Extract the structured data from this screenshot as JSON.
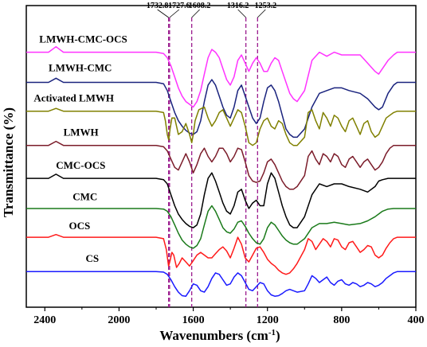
{
  "chart_data": {
    "type": "line",
    "xlabel": "Wavenumbers (cm",
    "xlabel_sup": "-1",
    "xlabel_end": ")",
    "ylabel": "Transmittance (%)",
    "xlim": [
      2500,
      400
    ],
    "x_reversed": true,
    "x_ticks": [
      2400,
      2000,
      1600,
      1200,
      800,
      400
    ],
    "x_tick_labels": [
      "2400",
      "2000",
      "1600",
      "1200",
      "800",
      "400"
    ],
    "y_ticks_shown": false,
    "grid": false,
    "reference_lines": [
      {
        "x": 1732.8,
        "label": "1732.8"
      },
      {
        "x": 1727.6,
        "label": "1727.6"
      },
      {
        "x": 1608.2,
        "label": "1608.2"
      },
      {
        "x": 1316.2,
        "label": "1316.2"
      },
      {
        "x": 1253.2,
        "label": "1253.2"
      }
    ],
    "reference_line_color": "#9b1b8e",
    "series": [
      {
        "name": "LMWH-CMC-OCS",
        "color": "#ff33ff",
        "baseline": 9.0,
        "x": [
          2500,
          2380,
          2340,
          2300,
          2200,
          2000,
          1800,
          1760,
          1740,
          1720,
          1700,
          1680,
          1660,
          1640,
          1620,
          1600,
          1580,
          1560,
          1540,
          1520,
          1500,
          1480,
          1460,
          1440,
          1420,
          1400,
          1380,
          1360,
          1340,
          1320,
          1300,
          1280,
          1260,
          1240,
          1220,
          1200,
          1180,
          1160,
          1140,
          1120,
          1100,
          1080,
          1060,
          1040,
          1000,
          960,
          920,
          880,
          840,
          800,
          760,
          700,
          660,
          620,
          600,
          580,
          550,
          520,
          500,
          480,
          450,
          420,
          400
        ],
        "y": [
          9.0,
          9.0,
          9.2,
          9.0,
          9.0,
          9.0,
          9.0,
          8.95,
          8.8,
          8.5,
          8.1,
          7.7,
          7.4,
          7.2,
          7.1,
          7.0,
          7.2,
          7.6,
          8.2,
          8.8,
          9.1,
          9.0,
          8.8,
          8.4,
          8.0,
          7.8,
          8.1,
          8.7,
          8.9,
          8.6,
          8.3,
          8.6,
          8.8,
          8.6,
          8.3,
          8.3,
          8.6,
          8.8,
          8.7,
          8.3,
          7.9,
          7.5,
          7.3,
          7.2,
          7.6,
          8.7,
          9.0,
          8.85,
          9.0,
          8.9,
          8.9,
          8.9,
          8.6,
          8.3,
          8.2,
          8.4,
          8.7,
          8.9,
          9.0,
          9.0,
          9.0,
          9.0,
          9.0
        ]
      },
      {
        "name": "LMWH-CMC",
        "color": "#1a237e",
        "baseline": 7.9,
        "x": [
          2500,
          2380,
          2340,
          2300,
          2200,
          2000,
          1800,
          1760,
          1740,
          1720,
          1700,
          1680,
          1660,
          1640,
          1620,
          1600,
          1580,
          1560,
          1540,
          1520,
          1500,
          1480,
          1460,
          1440,
          1420,
          1400,
          1380,
          1360,
          1340,
          1320,
          1300,
          1280,
          1260,
          1240,
          1220,
          1200,
          1180,
          1160,
          1140,
          1120,
          1100,
          1080,
          1060,
          1040,
          1000,
          960,
          920,
          880,
          840,
          800,
          760,
          700,
          660,
          620,
          600,
          580,
          550,
          520,
          500,
          480,
          450,
          420,
          400
        ],
        "y": [
          7.9,
          7.9,
          8.05,
          7.9,
          7.9,
          7.9,
          7.9,
          7.85,
          7.6,
          7.2,
          6.8,
          6.5,
          6.3,
          6.15,
          6.05,
          6.0,
          6.1,
          6.5,
          7.2,
          7.8,
          8.0,
          7.8,
          7.4,
          7.0,
          6.7,
          6.6,
          7.0,
          7.6,
          7.8,
          7.4,
          7.0,
          6.6,
          6.4,
          6.6,
          7.2,
          7.7,
          7.8,
          7.6,
          7.2,
          6.7,
          6.2,
          6.0,
          5.9,
          5.9,
          6.2,
          7.0,
          7.5,
          7.6,
          7.7,
          7.7,
          7.6,
          7.5,
          7.3,
          7.0,
          6.9,
          7.0,
          7.5,
          7.8,
          7.9,
          7.9,
          7.9,
          7.9,
          7.9
        ]
      },
      {
        "name": "Activated LMWH",
        "color": "#808000",
        "baseline": 6.85,
        "x": [
          2500,
          2380,
          2340,
          2300,
          2200,
          2000,
          1800,
          1760,
          1750,
          1740,
          1732,
          1725,
          1715,
          1700,
          1690,
          1680,
          1660,
          1640,
          1620,
          1608,
          1600,
          1590,
          1570,
          1540,
          1520,
          1500,
          1480,
          1460,
          1440,
          1420,
          1400,
          1380,
          1360,
          1340,
          1320,
          1300,
          1280,
          1260,
          1240,
          1220,
          1200,
          1180,
          1160,
          1140,
          1120,
          1100,
          1080,
          1060,
          1040,
          1000,
          980,
          960,
          940,
          920,
          900,
          880,
          860,
          840,
          820,
          800,
          780,
          760,
          740,
          720,
          700,
          680,
          660,
          640,
          620,
          600,
          580,
          560,
          540,
          520,
          500,
          480,
          450,
          420,
          400
        ],
        "y": [
          6.85,
          6.85,
          6.95,
          6.85,
          6.85,
          6.85,
          6.85,
          6.8,
          6.5,
          6.0,
          5.8,
          6.2,
          6.6,
          6.6,
          6.3,
          6.0,
          6.1,
          6.4,
          6.0,
          5.7,
          6.0,
          6.5,
          6.9,
          7.0,
          6.6,
          6.3,
          6.5,
          6.8,
          6.9,
          6.6,
          6.3,
          6.6,
          6.9,
          6.8,
          6.3,
          5.7,
          5.6,
          5.7,
          6.2,
          6.5,
          6.6,
          6.3,
          6.2,
          6.5,
          6.4,
          6.0,
          5.7,
          5.6,
          5.6,
          5.9,
          6.8,
          6.9,
          6.5,
          6.2,
          6.8,
          6.6,
          6.3,
          6.7,
          6.6,
          6.3,
          6.1,
          6.5,
          6.6,
          6.3,
          6.0,
          6.4,
          6.5,
          6.1,
          5.9,
          6.0,
          6.3,
          6.6,
          6.7,
          6.8,
          6.85,
          6.85,
          6.85,
          6.85,
          6.85
        ]
      },
      {
        "name": "LMWH",
        "color": "#7b1c2a",
        "baseline": 5.6,
        "x": [
          2500,
          2380,
          2340,
          2300,
          2200,
          2000,
          1800,
          1760,
          1740,
          1720,
          1700,
          1680,
          1660,
          1640,
          1620,
          1600,
          1580,
          1560,
          1540,
          1520,
          1500,
          1480,
          1460,
          1440,
          1420,
          1400,
          1380,
          1360,
          1340,
          1320,
          1300,
          1280,
          1260,
          1240,
          1220,
          1200,
          1180,
          1160,
          1140,
          1120,
          1100,
          1080,
          1060,
          1040,
          1000,
          980,
          960,
          940,
          920,
          900,
          880,
          860,
          840,
          820,
          800,
          780,
          760,
          740,
          720,
          700,
          680,
          660,
          640,
          620,
          600,
          580,
          560,
          540,
          520,
          500,
          480,
          450,
          420,
          400
        ],
        "y": [
          5.6,
          5.6,
          5.75,
          5.6,
          5.6,
          5.6,
          5.6,
          5.55,
          5.4,
          5.1,
          4.8,
          4.7,
          5.0,
          5.3,
          5.0,
          4.6,
          4.9,
          5.3,
          5.5,
          5.2,
          5.0,
          5.2,
          5.5,
          5.5,
          5.3,
          5.0,
          5.2,
          5.5,
          5.45,
          5.0,
          4.5,
          4.3,
          4.25,
          4.3,
          4.6,
          5.0,
          5.1,
          4.9,
          4.6,
          4.3,
          4.1,
          4.0,
          4.0,
          4.1,
          4.5,
          5.2,
          5.4,
          5.1,
          4.9,
          5.3,
          5.2,
          5.0,
          5.3,
          5.2,
          4.9,
          4.8,
          5.1,
          5.2,
          5.0,
          4.8,
          5.0,
          5.1,
          4.9,
          4.7,
          4.8,
          5.0,
          5.3,
          5.5,
          5.6,
          5.6,
          5.6,
          5.6,
          5.6,
          5.6
        ]
      },
      {
        "name": "CMC-OCS",
        "color": "#000000",
        "baseline": 4.4,
        "x": [
          2500,
          2380,
          2340,
          2300,
          2200,
          2000,
          1800,
          1760,
          1740,
          1720,
          1700,
          1680,
          1660,
          1640,
          1620,
          1600,
          1580,
          1560,
          1540,
          1520,
          1500,
          1480,
          1460,
          1440,
          1420,
          1400,
          1380,
          1360,
          1340,
          1320,
          1300,
          1280,
          1260,
          1240,
          1220,
          1200,
          1180,
          1160,
          1140,
          1120,
          1100,
          1080,
          1060,
          1040,
          1000,
          960,
          920,
          880,
          840,
          800,
          760,
          700,
          660,
          620,
          600,
          580,
          550,
          520,
          500,
          480,
          450,
          420,
          400
        ],
        "y": [
          4.4,
          4.4,
          4.55,
          4.4,
          4.4,
          4.4,
          4.4,
          4.35,
          4.2,
          3.8,
          3.4,
          3.1,
          2.9,
          2.75,
          2.65,
          2.6,
          2.7,
          3.1,
          3.8,
          4.4,
          4.6,
          4.3,
          3.9,
          3.5,
          3.2,
          3.1,
          3.4,
          3.9,
          4.0,
          3.6,
          3.3,
          3.5,
          3.6,
          3.4,
          3.4,
          4.2,
          4.6,
          4.4,
          3.9,
          3.4,
          3.0,
          2.7,
          2.6,
          2.6,
          3.0,
          3.8,
          4.2,
          4.1,
          4.2,
          4.2,
          4.1,
          4.0,
          3.9,
          4.1,
          4.3,
          4.35,
          4.4,
          4.4,
          4.4,
          4.4,
          4.4,
          4.4,
          4.4
        ]
      },
      {
        "name": "CMC",
        "color": "#1a7a1a",
        "baseline": 3.3,
        "x": [
          2500,
          2380,
          2340,
          2300,
          2200,
          2000,
          1800,
          1760,
          1740,
          1720,
          1700,
          1680,
          1660,
          1640,
          1620,
          1600,
          1580,
          1560,
          1540,
          1520,
          1500,
          1480,
          1460,
          1440,
          1420,
          1400,
          1380,
          1360,
          1340,
          1320,
          1300,
          1280,
          1260,
          1240,
          1220,
          1200,
          1180,
          1160,
          1140,
          1120,
          1100,
          1080,
          1060,
          1040,
          1000,
          960,
          920,
          880,
          840,
          800,
          760,
          700,
          660,
          620,
          600,
          580,
          550,
          520,
          500,
          480,
          450,
          420,
          400
        ],
        "y": [
          3.3,
          3.3,
          3.3,
          3.3,
          3.3,
          3.3,
          3.3,
          3.28,
          3.2,
          3.0,
          2.7,
          2.4,
          2.15,
          2.0,
          1.9,
          1.85,
          1.95,
          2.2,
          2.7,
          3.2,
          3.4,
          3.2,
          2.9,
          2.6,
          2.45,
          2.4,
          2.55,
          2.8,
          2.85,
          2.65,
          2.4,
          2.2,
          2.05,
          2.0,
          2.2,
          2.6,
          2.8,
          2.7,
          2.5,
          2.3,
          2.15,
          2.05,
          2.0,
          2.0,
          2.2,
          2.6,
          2.75,
          2.75,
          2.8,
          2.75,
          2.7,
          2.75,
          2.85,
          3.0,
          3.1,
          3.2,
          3.28,
          3.3,
          3.3,
          3.3,
          3.3,
          3.3,
          3.3
        ]
      },
      {
        "name": "OCS",
        "color": "#ff1a1a",
        "baseline": 2.25,
        "x": [
          2500,
          2380,
          2340,
          2300,
          2200,
          2000,
          1800,
          1760,
          1745,
          1733,
          1725,
          1715,
          1705,
          1690,
          1675,
          1660,
          1640,
          1620,
          1600,
          1580,
          1560,
          1540,
          1520,
          1500,
          1480,
          1460,
          1440,
          1420,
          1400,
          1380,
          1360,
          1340,
          1320,
          1300,
          1280,
          1260,
          1240,
          1220,
          1200,
          1180,
          1160,
          1140,
          1120,
          1100,
          1080,
          1060,
          1040,
          1000,
          980,
          960,
          940,
          920,
          900,
          880,
          860,
          840,
          820,
          800,
          780,
          760,
          740,
          720,
          700,
          680,
          660,
          640,
          620,
          600,
          580,
          560,
          540,
          520,
          500,
          480,
          450,
          420,
          400
        ],
        "y": [
          2.25,
          2.25,
          2.35,
          2.25,
          2.25,
          2.25,
          2.25,
          2.2,
          1.8,
          1.2,
          1.4,
          1.7,
          1.6,
          1.15,
          1.3,
          1.5,
          1.35,
          1.2,
          1.4,
          1.6,
          1.7,
          1.6,
          1.5,
          1.5,
          1.65,
          1.8,
          1.9,
          1.75,
          1.5,
          1.85,
          2.25,
          2.0,
          1.5,
          1.35,
          1.6,
          1.85,
          1.9,
          1.7,
          1.45,
          1.3,
          1.2,
          1.05,
          0.95,
          0.9,
          0.95,
          1.1,
          1.3,
          1.8,
          2.2,
          2.1,
          1.8,
          2.0,
          2.2,
          2.1,
          1.9,
          2.2,
          2.15,
          1.9,
          1.8,
          2.05,
          2.1,
          1.9,
          1.7,
          1.8,
          1.95,
          1.9,
          1.6,
          1.5,
          1.6,
          1.85,
          2.05,
          2.2,
          2.25,
          2.25,
          2.25,
          2.25,
          2.25
        ]
      },
      {
        "name": "CS",
        "color": "#1a1aff",
        "baseline": 1.0,
        "x": [
          2500,
          2380,
          2340,
          2300,
          2200,
          2000,
          1800,
          1760,
          1740,
          1720,
          1700,
          1680,
          1660,
          1640,
          1620,
          1600,
          1580,
          1560,
          1540,
          1520,
          1500,
          1480,
          1460,
          1440,
          1420,
          1400,
          1380,
          1360,
          1340,
          1320,
          1300,
          1280,
          1260,
          1240,
          1220,
          1200,
          1180,
          1160,
          1140,
          1120,
          1100,
          1080,
          1060,
          1040,
          1000,
          980,
          960,
          940,
          920,
          900,
          880,
          860,
          840,
          820,
          800,
          780,
          760,
          740,
          720,
          700,
          680,
          660,
          640,
          620,
          600,
          580,
          560,
          540,
          520,
          500,
          480,
          450,
          420,
          400
        ],
        "y": [
          1.0,
          1.0,
          1.0,
          1.0,
          1.0,
          1.0,
          1.0,
          0.98,
          0.9,
          0.7,
          0.45,
          0.25,
          0.12,
          0.1,
          0.3,
          0.55,
          0.5,
          0.3,
          0.25,
          0.45,
          0.75,
          0.95,
          0.9,
          0.7,
          0.5,
          0.55,
          0.8,
          0.95,
          0.85,
          0.6,
          0.35,
          0.3,
          0.45,
          0.6,
          0.55,
          0.3,
          0.15,
          0.1,
          0.12,
          0.2,
          0.3,
          0.35,
          0.3,
          0.25,
          0.3,
          0.55,
          0.85,
          0.75,
          0.6,
          0.7,
          0.8,
          0.6,
          0.5,
          0.65,
          0.7,
          0.55,
          0.5,
          0.6,
          0.55,
          0.45,
          0.5,
          0.6,
          0.55,
          0.45,
          0.5,
          0.6,
          0.75,
          0.85,
          0.95,
          1.0,
          1.0,
          1.0,
          1.0,
          1.0
        ]
      }
    ],
    "series_label_positions": [
      {
        "name": "LMWH-CMC-OCS",
        "x": 2430,
        "y": 9.35
      },
      {
        "name": "LMWH-CMC",
        "x": 2380,
        "y": 8.3
      },
      {
        "name": "Activated LMWH",
        "x": 2460,
        "y": 7.2
      },
      {
        "name": "LMWH",
        "x": 2300,
        "y": 5.95
      },
      {
        "name": "CMC-OCS",
        "x": 2340,
        "y": 4.75
      },
      {
        "name": "CMC",
        "x": 2250,
        "y": 3.6
      },
      {
        "name": "OCS",
        "x": 2270,
        "y": 2.55
      },
      {
        "name": "CS",
        "x": 2180,
        "y": 1.35
      }
    ]
  }
}
